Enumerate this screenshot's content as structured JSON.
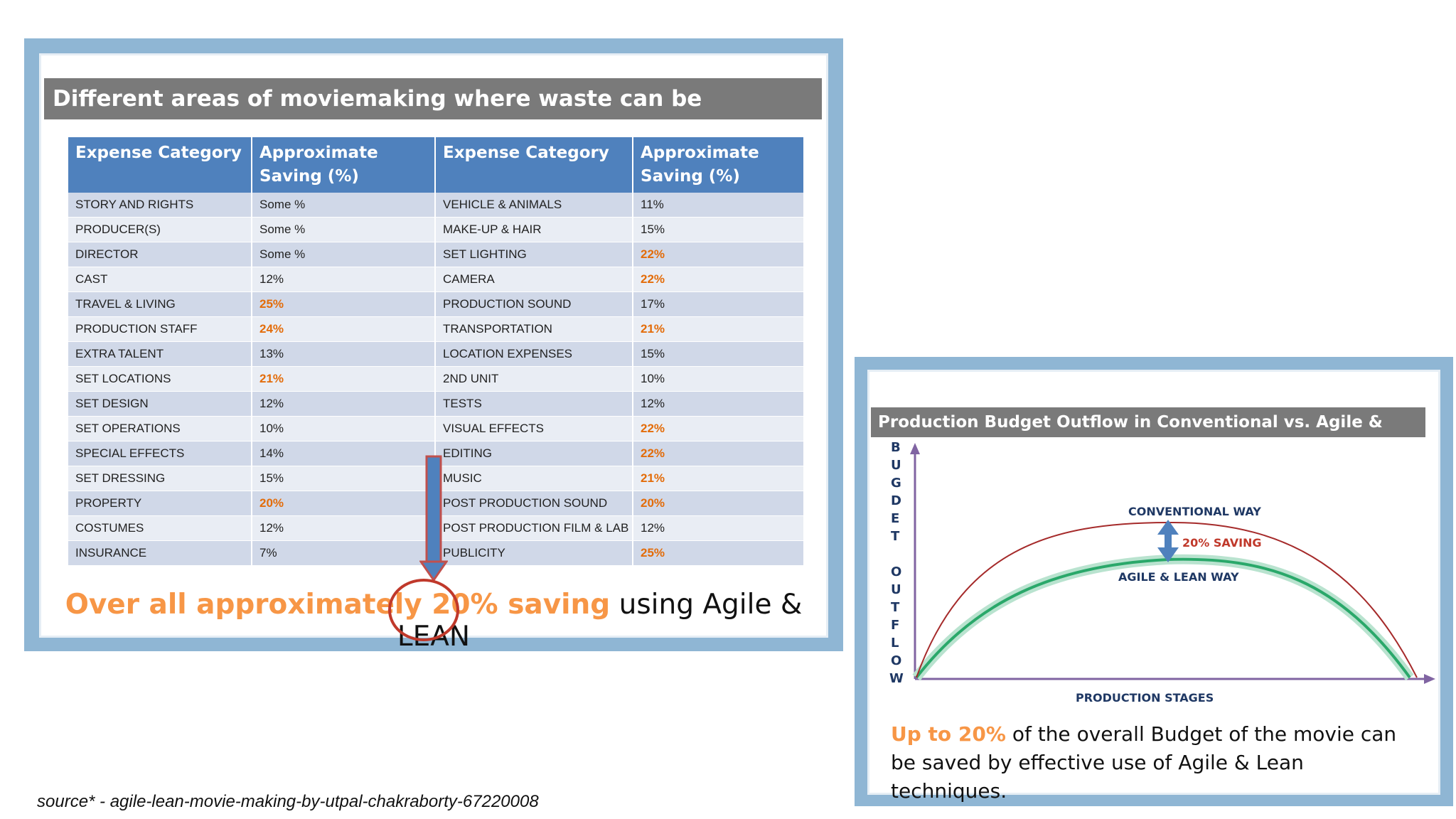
{
  "left_slide": {
    "title": "Different areas of moviemaking where waste can be eliminated",
    "headers": [
      "Expense Category",
      "Approximate Saving (%)",
      "Expense Category",
      "Approximate Saving (%)"
    ],
    "rows": [
      {
        "cat1": "STORY AND RIGHTS",
        "val1": "Some %",
        "cat2": "VEHICLE & ANIMALS",
        "val2": "11%"
      },
      {
        "cat1": "PRODUCER(S)",
        "val1": "Some %",
        "cat2": "MAKE-UP & HAIR",
        "val2": "15%"
      },
      {
        "cat1": "DIRECTOR",
        "val1": "Some %",
        "cat2": "SET LIGHTING",
        "val2": "22%"
      },
      {
        "cat1": "CAST",
        "val1": "12%",
        "cat2": "CAMERA",
        "val2": "22%"
      },
      {
        "cat1": "TRAVEL & LIVING",
        "val1": "25%",
        "cat2": "PRODUCTION SOUND",
        "val2": "17%"
      },
      {
        "cat1": "PRODUCTION STAFF",
        "val1": "24%",
        "cat2": "TRANSPORTATION",
        "val2": "21%"
      },
      {
        "cat1": "EXTRA TALENT",
        "val1": "13%",
        "cat2": "LOCATION EXPENSES",
        "val2": "15%"
      },
      {
        "cat1": "SET LOCATIONS",
        "val1": "21%",
        "cat2": "2ND UNIT",
        "val2": "10%"
      },
      {
        "cat1": "SET DESIGN",
        "val1": "12%",
        "cat2": "TESTS",
        "val2": "12%"
      },
      {
        "cat1": "SET OPERATIONS",
        "val1": "10%",
        "cat2": "VISUAL EFFECTS",
        "val2": "22%"
      },
      {
        "cat1": "SPECIAL EFFECTS",
        "val1": "14%",
        "cat2": "EDITING",
        "val2": "22%"
      },
      {
        "cat1": "SET DRESSING",
        "val1": "15%",
        "cat2": "MUSIC",
        "val2": "21%"
      },
      {
        "cat1": "PROPERTY",
        "val1": "20%",
        "cat2": "POST PRODUCTION SOUND",
        "val2": "20%"
      },
      {
        "cat1": "COSTUMES",
        "val1": "12%",
        "cat2": "POST PRODUCTION FILM & LAB",
        "val2": "12%"
      },
      {
        "cat1": "INSURANCE",
        "val1": "7%",
        "cat2": "PUBLICITY",
        "val2": "25%"
      }
    ],
    "footer": {
      "part1": "Over all approximately ",
      "percent": "20%",
      "part2": " saving",
      "part3": " using Agile & LEAN"
    },
    "highlight_color": "#e36c09"
  },
  "right_slide": {
    "title": "Production Budget Outflow in Conventional vs. Agile & Lean way",
    "y_axis_letters": [
      "B",
      "U",
      "G",
      "D",
      "E",
      "T",
      "",
      "O",
      "U",
      "T",
      "F",
      "L",
      "O",
      "W"
    ],
    "x_axis_label": "PRODUCTION STAGES",
    "conventional_label": "CONVENTIONAL WAY",
    "agile_label": "AGILE & LEAN WAY",
    "saving_label": "20% SAVING",
    "caption_highlight": "Up to 20%",
    "caption_rest": " of the overall Budget of the movie can be saved by effective use of Agile & Lean techniques."
  },
  "source": "source* - agile-lean-movie-making-by-utpal-chakraborty-67220008"
}
